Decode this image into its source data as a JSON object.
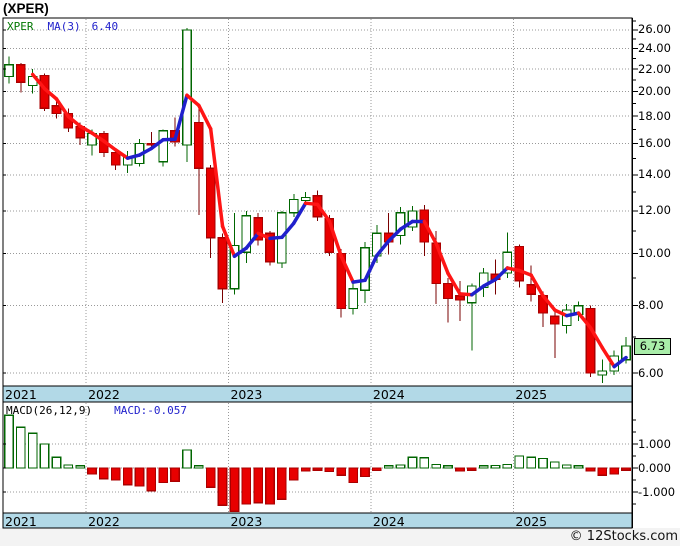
{
  "title": "(XPER)",
  "watermark": "© 12Stocks.com",
  "colors": {
    "up_outline": "#006600",
    "down_fill": "#e80000",
    "down_stroke": "#aa0000",
    "down_wick": "#7a0000",
    "ma_rising": "#2020cc",
    "ma_falling": "#ff1515",
    "grid": "#999999",
    "axis_band": "#b2d9e7",
    "badge_bg": "#a9eda9",
    "panel_border": "#000000",
    "footer_strip": "#f3f3f3"
  },
  "chart_data": [
    {
      "type": "candlestick",
      "symbol": "XPER",
      "legend": {
        "symbol": "XPER",
        "ma": "MA(3)",
        "ma_value": "6.40"
      },
      "scale": "log",
      "ma_period": 3,
      "last_price": "6.73",
      "y_ticks": [
        "26.00",
        "24.00",
        "22.00",
        "20.00",
        "18.00",
        "16.00",
        "14.00",
        "12.00",
        "10.00",
        "8.00",
        "6.00"
      ],
      "x_years": [
        {
          "label": "2021",
          "start_index": 0
        },
        {
          "label": "2022",
          "start_index": 7
        },
        {
          "label": "2023",
          "start_index": 19
        },
        {
          "label": "2024",
          "start_index": 31
        },
        {
          "label": "2025",
          "start_index": 43
        }
      ],
      "candles_format": [
        "open",
        "high",
        "low",
        "close"
      ],
      "candles": [
        [
          21.3,
          23.2,
          20.7,
          22.4
        ],
        [
          22.4,
          22.6,
          19.9,
          20.8
        ],
        [
          20.5,
          22.0,
          19.8,
          21.3
        ],
        [
          21.4,
          21.6,
          18.4,
          18.6
        ],
        [
          18.8,
          19.5,
          17.8,
          18.2
        ],
        [
          18.2,
          18.6,
          16.8,
          17.1
        ],
        [
          17.2,
          17.5,
          15.9,
          16.4
        ],
        [
          15.9,
          17.0,
          15.2,
          16.7
        ],
        [
          16.7,
          16.9,
          15.1,
          15.4
        ],
        [
          15.4,
          15.7,
          14.3,
          14.6
        ],
        [
          14.6,
          15.5,
          14.1,
          15.1
        ],
        [
          14.7,
          16.3,
          14.5,
          16.0
        ],
        [
          16.0,
          16.8,
          15.7,
          15.9
        ],
        [
          14.8,
          17.0,
          14.5,
          16.9
        ],
        [
          16.9,
          17.9,
          15.8,
          16.1
        ],
        [
          15.9,
          26.2,
          14.8,
          26.0
        ],
        [
          17.5,
          19.0,
          11.8,
          14.4
        ],
        [
          14.4,
          14.6,
          9.8,
          10.7
        ],
        [
          10.7,
          10.9,
          8.1,
          8.6
        ],
        [
          8.6,
          11.9,
          8.4,
          10.35
        ],
        [
          10.05,
          12.0,
          9.6,
          11.75
        ],
        [
          11.65,
          11.9,
          10.35,
          10.6
        ],
        [
          10.9,
          11.0,
          9.5,
          9.65
        ],
        [
          9.6,
          12.0,
          9.4,
          11.9
        ],
        [
          11.9,
          12.9,
          11.7,
          12.6
        ],
        [
          12.55,
          13.0,
          12.3,
          12.7
        ],
        [
          12.8,
          13.1,
          11.5,
          11.7
        ],
        [
          11.6,
          11.8,
          9.9,
          10.05
        ],
        [
          10.0,
          10.2,
          7.6,
          7.9
        ],
        [
          7.9,
          8.9,
          7.7,
          8.6
        ],
        [
          8.55,
          10.5,
          8.1,
          10.25
        ],
        [
          9.9,
          11.3,
          9.6,
          10.9
        ],
        [
          10.9,
          11.9,
          9.95,
          10.5
        ],
        [
          10.8,
          12.2,
          10.4,
          11.9
        ],
        [
          11.2,
          12.25,
          11.0,
          12.0
        ],
        [
          12.05,
          12.3,
          9.9,
          10.5
        ],
        [
          10.45,
          11.0,
          8.05,
          8.8
        ],
        [
          8.8,
          9.0,
          7.45,
          8.25
        ],
        [
          8.35,
          8.9,
          7.5,
          8.2
        ],
        [
          8.1,
          8.8,
          6.6,
          8.7
        ],
        [
          8.65,
          9.4,
          8.3,
          9.2
        ],
        [
          9.15,
          9.75,
          8.4,
          8.95
        ],
        [
          9.2,
          10.95,
          9.0,
          10.05
        ],
        [
          10.3,
          10.4,
          8.65,
          8.9
        ],
        [
          8.75,
          9.5,
          8.15,
          8.4
        ],
        [
          8.35,
          8.5,
          7.3,
          7.75
        ],
        [
          7.65,
          7.8,
          6.4,
          7.4
        ],
        [
          7.35,
          8.05,
          7.1,
          7.85
        ],
        [
          7.7,
          8.15,
          7.5,
          8.0
        ],
        [
          7.9,
          8.0,
          5.9,
          6.0
        ],
        [
          5.95,
          6.35,
          5.75,
          6.05
        ],
        [
          6.05,
          6.6,
          5.95,
          6.45
        ],
        [
          6.35,
          7.0,
          6.25,
          6.73
        ]
      ]
    },
    {
      "type": "bar",
      "name": "MACD histogram",
      "legend": {
        "label": "MACD(26,12,9)",
        "value_label": "MACD:-0.057"
      },
      "last_value": -0.057,
      "y_ticks": [
        "1.000",
        "0.000",
        "-1.000"
      ],
      "y_tick_values": [
        1,
        0,
        -1
      ],
      "values": [
        2.2,
        1.7,
        1.45,
        1.0,
        0.45,
        0.12,
        0.05,
        -0.25,
        -0.45,
        -0.5,
        -0.7,
        -0.75,
        -0.95,
        -0.6,
        -0.55,
        0.75,
        0.05,
        -0.8,
        -1.55,
        -1.8,
        -1.5,
        -1.45,
        -1.5,
        -1.3,
        -0.5,
        -0.12,
        -0.08,
        -0.15,
        -0.3,
        -0.6,
        -0.35,
        -0.1,
        0.08,
        0.12,
        0.45,
        0.43,
        0.15,
        0.03,
        -0.12,
        -0.05,
        0.08,
        0.1,
        0.15,
        0.5,
        0.45,
        0.4,
        0.25,
        0.12,
        0.08,
        -0.12,
        -0.3,
        -0.25,
        -0.057
      ]
    }
  ]
}
